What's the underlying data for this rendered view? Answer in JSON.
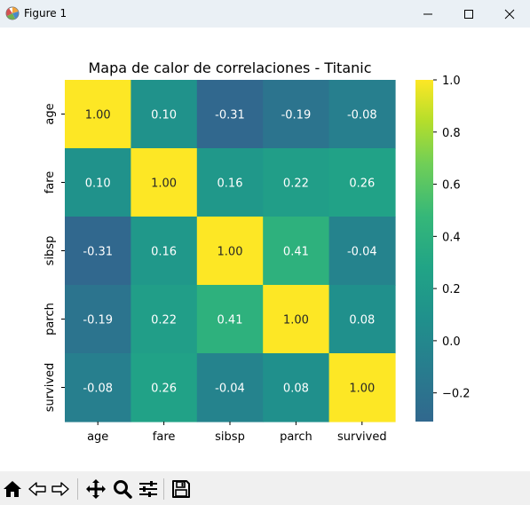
{
  "window": {
    "title": "Figure 1",
    "icons": {
      "app": "matplotlib-figure-icon",
      "minimize": "minimize-icon",
      "maximize": "maximize-icon",
      "close": "close-icon"
    }
  },
  "toolbar": {
    "items": [
      {
        "name": "home",
        "icon": "home-icon"
      },
      {
        "name": "back",
        "icon": "arrow-left-icon"
      },
      {
        "name": "forward",
        "icon": "arrow-right-icon"
      },
      {
        "name": "pan",
        "icon": "move-icon"
      },
      {
        "name": "zoom",
        "icon": "magnifier-icon"
      },
      {
        "name": "configure",
        "icon": "sliders-icon"
      },
      {
        "name": "save",
        "icon": "floppy-disk-icon"
      }
    ]
  },
  "chart_data": {
    "type": "heatmap",
    "title": "Mapa de calor de correlaciones - Titanic",
    "rows": [
      "age",
      "fare",
      "sibsp",
      "parch",
      "survived"
    ],
    "columns": [
      "age",
      "fare",
      "sibsp",
      "parch",
      "survived"
    ],
    "values": [
      [
        1.0,
        0.1,
        -0.31,
        -0.19,
        -0.08
      ],
      [
        0.1,
        1.0,
        0.16,
        0.22,
        0.26
      ],
      [
        -0.31,
        0.16,
        1.0,
        0.41,
        -0.04
      ],
      [
        -0.19,
        0.22,
        0.41,
        1.0,
        0.08
      ],
      [
        -0.08,
        0.26,
        -0.04,
        0.08,
        1.0
      ]
    ],
    "annotation_format": "0.00",
    "colormap": "viridis",
    "vmin": -0.31,
    "vmax": 1.0,
    "colorbar": {
      "ticks": [
        1.0,
        0.8,
        0.6,
        0.4,
        0.2,
        0.0,
        -0.2
      ],
      "tick_labels": [
        "1.0",
        "0.8",
        "0.6",
        "0.4",
        "0.2",
        "0.0",
        "−0.2"
      ]
    }
  }
}
